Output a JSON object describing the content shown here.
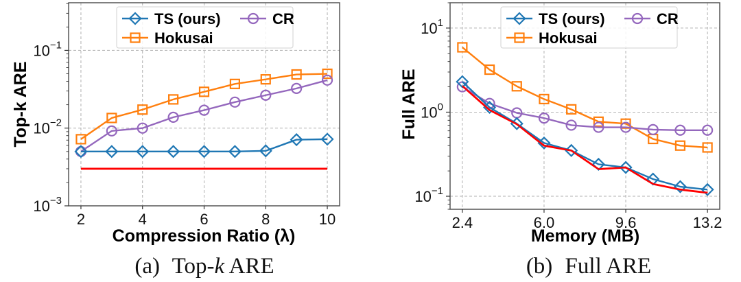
{
  "chart_data": [
    {
      "type": "line",
      "id": "a",
      "caption": {
        "prefix": "(a)",
        "text_before": "Top-",
        "text_italic": "k",
        "text_after": " ARE"
      },
      "xlabel": "Compression Ratio (λ)",
      "ylabel": "Top-k ARE",
      "yscale": "log",
      "xlim": [
        1.6,
        10.4
      ],
      "ylim": [
        0.001,
        0.41
      ],
      "xticks": [
        2,
        4,
        6,
        8,
        10
      ],
      "xtick_labels": [
        "2",
        "4",
        "6",
        "8",
        "10"
      ],
      "yticks": [
        0.001,
        0.01,
        0.1
      ],
      "ytick_labels": [
        {
          "base": "10",
          "exp": "−3"
        },
        {
          "base": "10",
          "exp": "−2"
        },
        {
          "base": "10",
          "exp": "−1"
        }
      ],
      "grid": true,
      "legend": {
        "placement": "top-center",
        "columns": 2
      },
      "x": [
        2,
        3,
        4,
        5,
        6,
        7,
        8,
        9,
        10
      ],
      "series": [
        {
          "name": "TS (ours)",
          "color": "#1f77b4",
          "marker": "diamond",
          "values": [
            0.005,
            0.005,
            0.005,
            0.005,
            0.005,
            0.005,
            0.0051,
            0.0071,
            0.0072
          ]
        },
        {
          "name": "Hokusai",
          "color": "#ff7f0e",
          "marker": "square",
          "values": [
            0.0072,
            0.0135,
            0.0173,
            0.0234,
            0.0293,
            0.037,
            0.0424,
            0.049,
            0.05
          ]
        },
        {
          "name": "CR",
          "color": "#9467bd",
          "marker": "circle",
          "values": [
            0.005,
            0.0092,
            0.01,
            0.0138,
            0.017,
            0.0216,
            0.0265,
            0.0324,
            0.0414
          ]
        },
        {
          "name": "",
          "color": "#ff0000",
          "marker": "none",
          "values": [
            0.003,
            0.003,
            0.003,
            0.003,
            0.003,
            0.003,
            0.003,
            0.003,
            0.003
          ]
        }
      ]
    },
    {
      "type": "line",
      "id": "b",
      "caption": {
        "prefix": "(b)",
        "text_before": "Full ARE",
        "text_italic": "",
        "text_after": ""
      },
      "xlabel": "Memory (MB)",
      "ylabel": "Full ARE",
      "yscale": "log",
      "xlim": [
        1.86,
        13.74
      ],
      "ylim": [
        0.07,
        20
      ],
      "xticks": [
        2.4,
        6.0,
        9.6,
        13.2
      ],
      "xtick_labels": [
        "2.4",
        "6.0",
        "9.6",
        "13.2"
      ],
      "yticks": [
        0.1,
        1,
        10
      ],
      "ytick_labels": [
        {
          "base": "10",
          "exp": "−1"
        },
        {
          "base": "10",
          "exp": "0"
        },
        {
          "base": "10",
          "exp": "1"
        }
      ],
      "grid": true,
      "legend": {
        "placement": "top-center",
        "columns": 2
      },
      "x": [
        2.4,
        3.6,
        4.8,
        6.0,
        7.2,
        8.4,
        9.6,
        10.8,
        12.0,
        13.2
      ],
      "series": [
        {
          "name": "TS (ours)",
          "color": "#1f77b4",
          "marker": "diamond",
          "values": [
            2.3,
            1.14,
            0.73,
            0.43,
            0.35,
            0.24,
            0.22,
            0.16,
            0.13,
            0.12
          ]
        },
        {
          "name": "Hokusai",
          "color": "#ff7f0e",
          "marker": "square",
          "values": [
            5.9,
            3.2,
            2.03,
            1.43,
            1.08,
            0.77,
            0.73,
            0.48,
            0.4,
            0.38
          ]
        },
        {
          "name": "CR",
          "color": "#9467bd",
          "marker": "circle",
          "values": [
            2.0,
            1.27,
            0.98,
            0.85,
            0.7,
            0.66,
            0.66,
            0.62,
            0.61,
            0.61
          ]
        },
        {
          "name": "",
          "color": "#ff0000",
          "marker": "none",
          "values": [
            2.05,
            1.06,
            0.72,
            0.4,
            0.35,
            0.21,
            0.22,
            0.14,
            0.12,
            0.11
          ]
        }
      ]
    }
  ]
}
